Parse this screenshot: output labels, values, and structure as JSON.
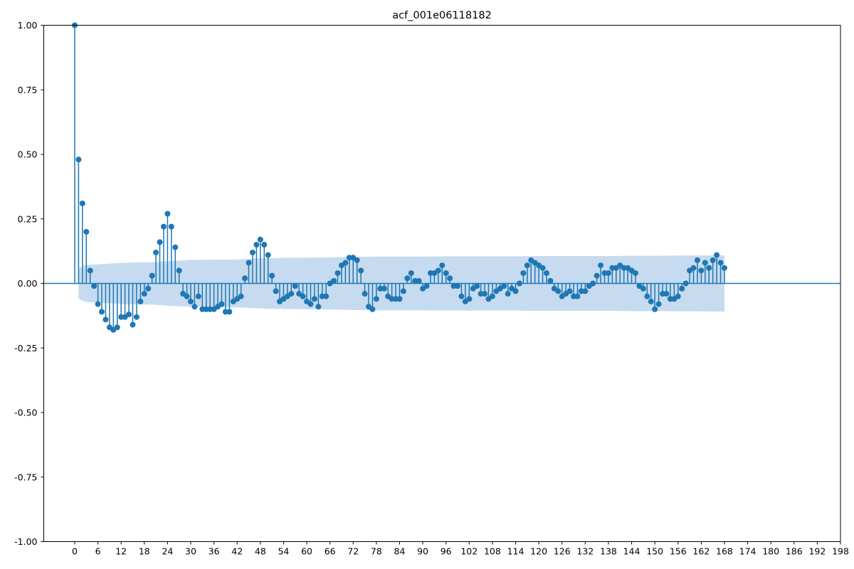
{
  "chart_data": {
    "type": "stem",
    "title": "acf_001e06118182",
    "xlabel": "",
    "ylabel": "",
    "xlim": [
      -8,
      198
    ],
    "ylim": [
      -1.0,
      1.0
    ],
    "x_ticks": [
      0,
      6,
      12,
      18,
      24,
      30,
      36,
      42,
      48,
      54,
      60,
      66,
      72,
      78,
      84,
      90,
      96,
      102,
      108,
      114,
      120,
      126,
      132,
      138,
      144,
      150,
      156,
      162,
      168,
      174,
      180,
      186,
      192,
      198
    ],
    "y_ticks": [
      "1.00",
      "0.75",
      "0.50",
      "0.25",
      "0.00",
      "-0.25",
      "-0.50",
      "-0.75",
      "-1.00"
    ],
    "grid": false,
    "colors": {
      "marker": "#1f77b4",
      "band": "#c6dbef"
    },
    "series": [
      {
        "x": [
          0,
          1,
          2,
          3,
          4,
          5,
          6,
          7,
          8,
          9,
          10,
          11,
          12,
          13,
          14,
          15,
          16,
          17,
          18,
          19,
          20,
          21,
          22,
          23,
          24,
          25,
          26,
          27,
          28,
          29,
          30,
          31,
          32,
          33,
          34,
          35,
          36,
          37,
          38,
          39,
          40,
          41,
          42,
          43,
          44,
          45,
          46,
          47,
          48,
          49,
          50,
          51,
          52,
          53,
          54,
          55,
          56,
          57,
          58,
          59,
          60,
          61,
          62,
          63,
          64,
          65,
          66,
          67,
          68,
          69,
          70,
          71,
          72,
          73,
          74,
          75,
          76,
          77,
          78,
          79,
          80,
          81,
          82,
          83,
          84,
          85,
          86,
          87,
          88,
          89,
          90,
          91,
          92,
          93,
          94,
          95,
          96,
          97,
          98,
          99,
          100,
          101,
          102,
          103,
          104,
          105,
          106,
          107,
          108,
          109,
          110,
          111,
          112,
          113,
          114,
          115,
          116,
          117,
          118,
          119,
          120,
          121,
          122,
          123,
          124,
          125,
          126,
          127,
          128,
          129,
          130,
          131,
          132,
          133,
          134,
          135,
          136,
          137,
          138,
          139,
          140,
          141,
          142,
          143,
          144,
          145,
          146,
          147,
          148,
          149,
          150,
          151,
          152,
          153,
          154,
          155,
          156,
          157,
          158,
          159,
          160,
          161,
          162,
          163,
          164,
          165,
          166,
          167,
          168
        ],
        "values": [
          1.0,
          0.48,
          0.31,
          0.2,
          0.05,
          -0.01,
          -0.08,
          -0.11,
          -0.14,
          -0.17,
          -0.18,
          -0.17,
          -0.13,
          -0.13,
          -0.12,
          -0.16,
          -0.13,
          -0.07,
          -0.04,
          -0.02,
          0.03,
          0.12,
          0.16,
          0.22,
          0.27,
          0.22,
          0.14,
          0.05,
          -0.04,
          -0.05,
          -0.07,
          -0.09,
          -0.05,
          -0.1,
          -0.1,
          -0.1,
          -0.1,
          -0.09,
          -0.08,
          -0.11,
          -0.11,
          -0.07,
          -0.06,
          -0.05,
          0.02,
          0.08,
          0.12,
          0.15,
          0.17,
          0.15,
          0.11,
          0.03,
          -0.03,
          -0.07,
          -0.06,
          -0.05,
          -0.04,
          -0.01,
          -0.04,
          -0.05,
          -0.07,
          -0.08,
          -0.06,
          -0.09,
          -0.05,
          -0.05,
          0.0,
          0.01,
          0.04,
          0.07,
          0.08,
          0.1,
          0.1,
          0.09,
          0.05,
          -0.04,
          -0.09,
          -0.1,
          -0.06,
          -0.02,
          -0.02,
          -0.05,
          -0.06,
          -0.06,
          -0.06,
          -0.03,
          0.02,
          0.04,
          0.01,
          0.01,
          -0.02,
          -0.01,
          0.04,
          0.04,
          0.05,
          0.07,
          0.04,
          0.02,
          -0.01,
          -0.01,
          -0.05,
          -0.07,
          -0.06,
          -0.02,
          -0.01,
          -0.04,
          -0.04,
          -0.06,
          -0.05,
          -0.03,
          -0.02,
          -0.01,
          -0.04,
          -0.02,
          -0.03,
          0.0,
          0.04,
          0.07,
          0.09,
          0.08,
          0.07,
          0.06,
          0.04,
          0.01,
          -0.02,
          -0.03,
          -0.05,
          -0.04,
          -0.03,
          -0.05,
          -0.05,
          -0.03,
          -0.03,
          -0.01,
          0.0,
          0.03,
          0.07,
          0.04,
          0.04,
          0.06,
          0.06,
          0.07,
          0.06,
          0.06,
          0.05,
          0.04,
          -0.01,
          -0.02,
          -0.05,
          -0.07,
          -0.1,
          -0.08,
          -0.04,
          -0.04,
          -0.06,
          -0.06,
          -0.05,
          -0.02,
          0.0,
          0.05,
          0.06,
          0.09,
          0.05,
          0.08,
          0.06,
          0.09,
          0.11,
          0.08,
          0.06
        ]
      }
    ],
    "confidence_band": {
      "x": [
        1,
        3,
        6,
        12,
        18,
        20,
        24,
        30,
        36,
        42,
        48,
        54,
        60,
        66,
        72,
        78,
        84,
        90,
        96,
        102,
        108,
        114,
        120,
        126,
        132,
        138,
        144,
        150,
        156,
        162,
        168
      ],
      "upper": [
        0.06,
        0.072,
        0.074,
        0.08,
        0.082,
        0.082,
        0.086,
        0.091,
        0.092,
        0.093,
        0.097,
        0.099,
        0.1,
        0.101,
        0.103,
        0.104,
        0.104,
        0.104,
        0.105,
        0.105,
        0.105,
        0.105,
        0.106,
        0.106,
        0.106,
        0.106,
        0.107,
        0.107,
        0.108,
        0.108,
        0.109
      ]
    }
  }
}
